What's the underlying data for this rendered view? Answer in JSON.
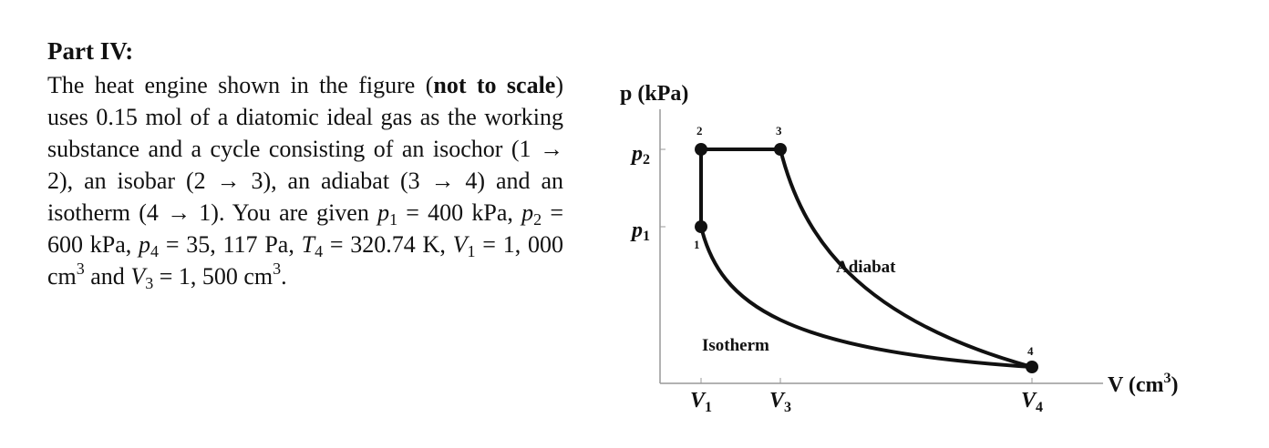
{
  "problem": {
    "heading": "Part IV:",
    "runs": [
      {
        "text": "The heat engine shown in the figure (",
        "style": "normal"
      },
      {
        "text": "not to scale",
        "style": "bold"
      },
      {
        "text": ") uses 0.15 mol of a diatomic ideal gas as the working substance and a cycle consisting of an isochor (1 → 2), an isobar (2 → 3), an adiabat (3 → 4) and an isotherm (4 → 1). You are given ",
        "style": "normal"
      },
      {
        "text": "p",
        "style": "italic"
      },
      {
        "text": "1",
        "style": "sub"
      },
      {
        "text": " = 400 kPa, ",
        "style": "normal"
      },
      {
        "text": "p",
        "style": "italic"
      },
      {
        "text": "2",
        "style": "sub"
      },
      {
        "text": " = 600 kPa, ",
        "style": "normal"
      },
      {
        "text": "p",
        "style": "italic"
      },
      {
        "text": "4",
        "style": "sub"
      },
      {
        "text": " = 35, 117 Pa, ",
        "style": "normal"
      },
      {
        "text": "T",
        "style": "italic"
      },
      {
        "text": "4",
        "style": "sub"
      },
      {
        "text": " = 320.74 K, ",
        "style": "normal"
      },
      {
        "text": "V",
        "style": "italic"
      },
      {
        "text": "1",
        "style": "sub"
      },
      {
        "text": " = 1, 000 cm",
        "style": "normal"
      },
      {
        "text": "3",
        "style": "sup"
      },
      {
        "text": " and ",
        "style": "normal"
      },
      {
        "text": "V",
        "style": "italic"
      },
      {
        "text": "3",
        "style": "sub"
      },
      {
        "text": " = 1, 500 cm",
        "style": "normal"
      },
      {
        "text": "3",
        "style": "sup"
      },
      {
        "text": ".",
        "style": "normal"
      }
    ]
  },
  "diagram": {
    "y_axis_label": "p (kPa)",
    "x_axis_label": {
      "text": "V (cm",
      "sup": "3",
      "close": ")"
    },
    "y_ticks": [
      {
        "symbol": "p",
        "sub": "2"
      },
      {
        "symbol": "p",
        "sub": "1"
      }
    ],
    "x_ticks": [
      {
        "symbol": "V",
        "sub": "1"
      },
      {
        "symbol": "V",
        "sub": "3"
      },
      {
        "symbol": "V",
        "sub": "4"
      }
    ],
    "points": [
      "1",
      "2",
      "3",
      "4"
    ],
    "curve_labels": [
      "Adiabat",
      "Isotherm"
    ]
  }
}
